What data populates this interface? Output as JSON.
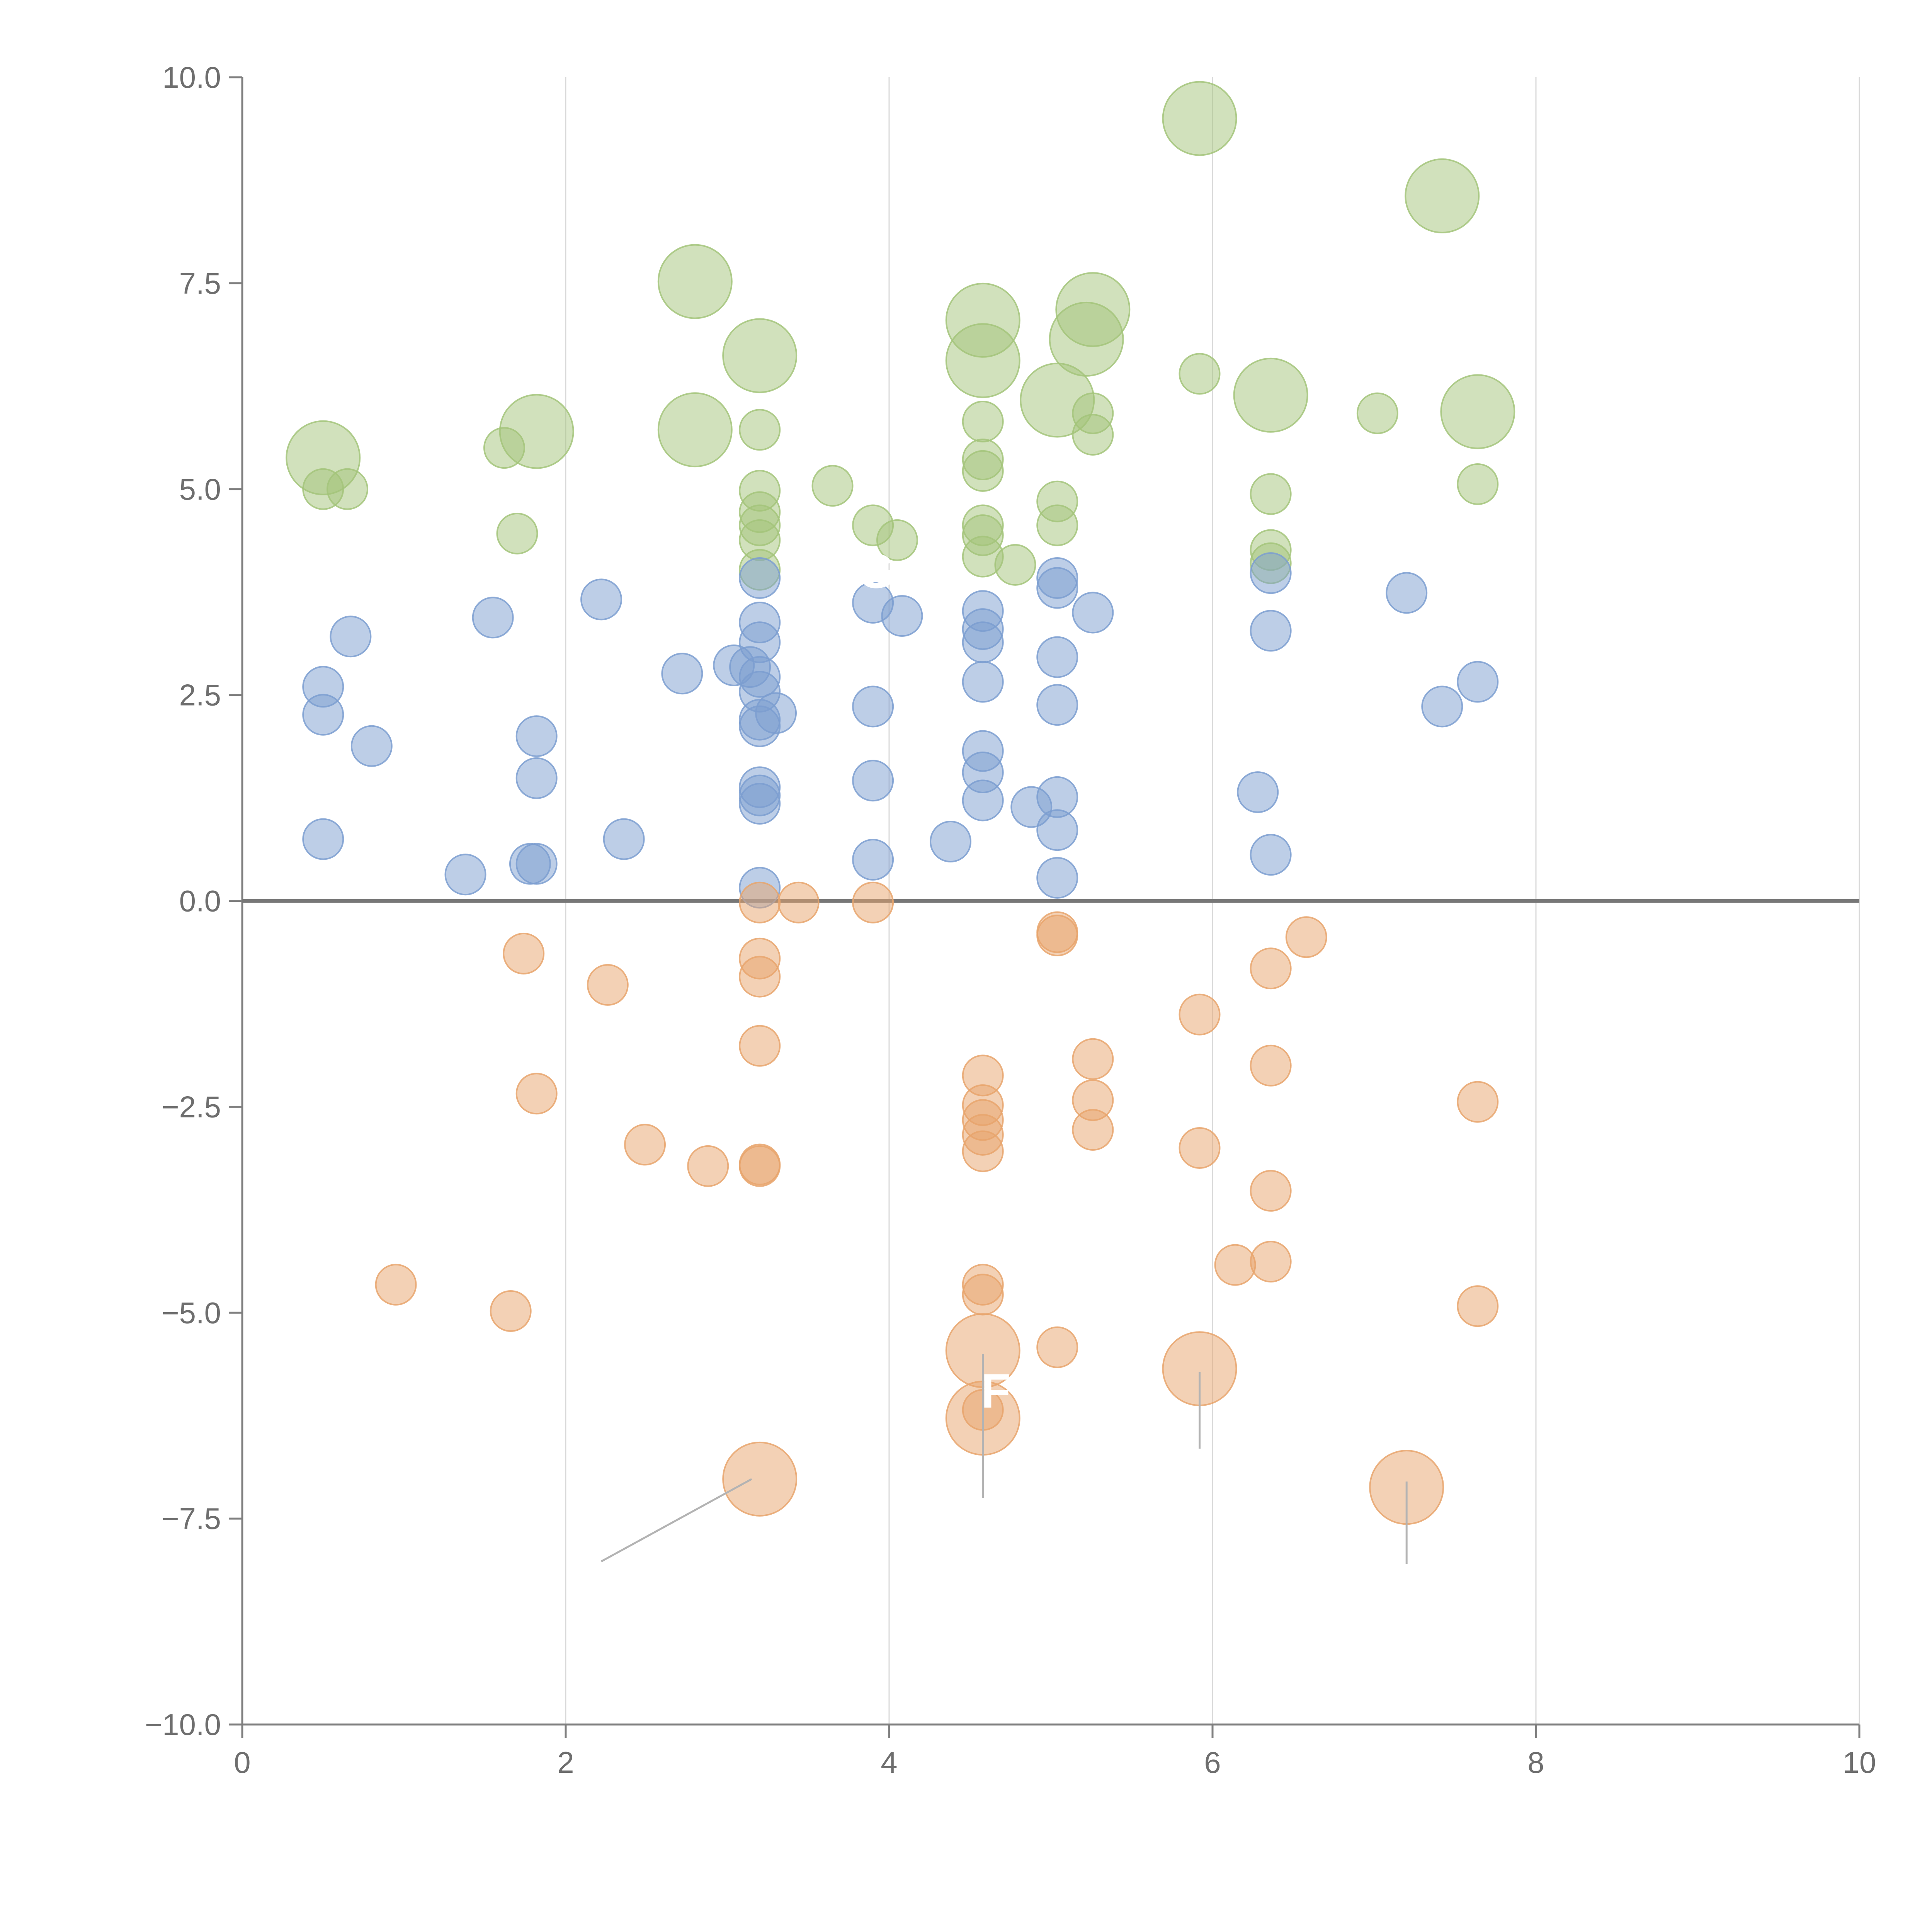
{
  "chart_data": {
    "type": "scatter",
    "title": "",
    "xlabel": "",
    "ylabel": "",
    "xlim": [
      0,
      10
    ],
    "ylim": [
      -10,
      10
    ],
    "grid": "vertical-only",
    "x_ticks": [
      0,
      2,
      4,
      6,
      8,
      10
    ],
    "x_tick_labels": [
      "0",
      "2",
      "4",
      "6",
      "8",
      "10"
    ],
    "y_ticks": [
      -10,
      -7.5,
      -5,
      -2.5,
      0,
      2.5,
      5,
      7.5,
      10
    ],
    "y_tick_labels": [
      "−10.0",
      "−7.5",
      "−5.0",
      "−2.5",
      "0.0",
      "2.5",
      "5.0",
      "7.5",
      "10.0"
    ],
    "zero_line": true,
    "series": [
      {
        "color": "#a3c47a",
        "points": [
          [
            0.5,
            5.38,
            3
          ],
          [
            0.5,
            5.0,
            1
          ],
          [
            0.65,
            5.0,
            1
          ],
          [
            1.62,
            5.5,
            1
          ],
          [
            1.82,
            5.7,
            3
          ],
          [
            1.7,
            4.46,
            1
          ],
          [
            2.8,
            7.52,
            3
          ],
          [
            2.8,
            5.72,
            3
          ],
          [
            3.2,
            6.62,
            3
          ],
          [
            3.2,
            5.72,
            1
          ],
          [
            3.2,
            4.98,
            1
          ],
          [
            3.2,
            4.72,
            1
          ],
          [
            3.2,
            4.56,
            1
          ],
          [
            3.2,
            4.38,
            1
          ],
          [
            3.2,
            4.02,
            1
          ],
          [
            3.65,
            5.04,
            1
          ],
          [
            3.9,
            4.56,
            1
          ],
          [
            4.05,
            4.38,
            1
          ],
          [
            4.58,
            7.05,
            3
          ],
          [
            4.58,
            6.56,
            3
          ],
          [
            4.58,
            5.82,
            1
          ],
          [
            4.58,
            5.36,
            1
          ],
          [
            4.58,
            5.22,
            1
          ],
          [
            4.58,
            4.56,
            1
          ],
          [
            4.58,
            4.44,
            1
          ],
          [
            4.58,
            4.18,
            1
          ],
          [
            4.78,
            4.08,
            1
          ],
          [
            5.04,
            6.08,
            3
          ],
          [
            5.04,
            4.85,
            1
          ],
          [
            5.04,
            4.56,
            1
          ],
          [
            5.26,
            7.18,
            3
          ],
          [
            5.22,
            6.82,
            3
          ],
          [
            5.26,
            5.92,
            1
          ],
          [
            5.26,
            5.66,
            1
          ],
          [
            5.92,
            9.5,
            3
          ],
          [
            5.92,
            6.4,
            1
          ],
          [
            6.36,
            6.14,
            3
          ],
          [
            6.36,
            4.94,
            1
          ],
          [
            6.36,
            4.26,
            1
          ],
          [
            6.36,
            4.1,
            1
          ],
          [
            7.02,
            5.92,
            1
          ],
          [
            7.42,
            8.56,
            3
          ],
          [
            7.64,
            5.94,
            3
          ],
          [
            7.64,
            5.06,
            1
          ]
        ]
      },
      {
        "color": "#7b9ed0",
        "points": [
          [
            0.5,
            2.6,
            1
          ],
          [
            0.5,
            2.26,
            1
          ],
          [
            0.5,
            0.75,
            1
          ],
          [
            0.67,
            3.21,
            1
          ],
          [
            0.8,
            1.88,
            1
          ],
          [
            1.38,
            0.32,
            1
          ],
          [
            1.55,
            3.44,
            1
          ],
          [
            1.82,
            2.0,
            1
          ],
          [
            1.82,
            1.49,
            1
          ],
          [
            1.78,
            0.45,
            1
          ],
          [
            1.82,
            0.45,
            1
          ],
          [
            2.22,
            3.66,
            1
          ],
          [
            2.36,
            0.75,
            1
          ],
          [
            2.72,
            2.76,
            1
          ],
          [
            3.04,
            2.86,
            1
          ],
          [
            3.14,
            2.84,
            1
          ],
          [
            3.2,
            3.92,
            1
          ],
          [
            3.2,
            3.38,
            1
          ],
          [
            3.2,
            3.14,
            1
          ],
          [
            3.2,
            2.72,
            1
          ],
          [
            3.2,
            2.54,
            1
          ],
          [
            3.2,
            2.2,
            1
          ],
          [
            3.2,
            2.12,
            1
          ],
          [
            3.3,
            2.28,
            1
          ],
          [
            3.2,
            1.38,
            1
          ],
          [
            3.2,
            1.28,
            1
          ],
          [
            3.2,
            1.18,
            1
          ],
          [
            3.2,
            0.16,
            1
          ],
          [
            3.9,
            3.62,
            1
          ],
          [
            4.08,
            3.46,
            1
          ],
          [
            3.9,
            2.36,
            1
          ],
          [
            3.9,
            1.46,
            1
          ],
          [
            3.9,
            0.5,
            1
          ],
          [
            4.38,
            0.72,
            1
          ],
          [
            4.58,
            3.52,
            1
          ],
          [
            4.58,
            3.3,
            1
          ],
          [
            4.58,
            3.14,
            1
          ],
          [
            4.58,
            2.66,
            1
          ],
          [
            4.58,
            1.82,
            1
          ],
          [
            4.58,
            1.56,
            1
          ],
          [
            4.58,
            1.22,
            1
          ],
          [
            4.88,
            1.14,
            1
          ],
          [
            5.04,
            3.92,
            1
          ],
          [
            5.04,
            3.8,
            1
          ],
          [
            5.04,
            2.96,
            1
          ],
          [
            5.04,
            2.38,
            1
          ],
          [
            5.04,
            1.26,
            1
          ],
          [
            5.04,
            0.86,
            1
          ],
          [
            5.04,
            0.28,
            1
          ],
          [
            5.26,
            3.5,
            1
          ],
          [
            6.28,
            1.32,
            1
          ],
          [
            6.36,
            3.98,
            1
          ],
          [
            6.36,
            3.28,
            1
          ],
          [
            6.36,
            0.56,
            1
          ],
          [
            7.2,
            3.74,
            1
          ],
          [
            7.42,
            2.36,
            1
          ],
          [
            7.64,
            2.66,
            1
          ]
        ]
      },
      {
        "color": "#e8a46c",
        "points": [
          [
            0.95,
            -4.66,
            1
          ],
          [
            1.66,
            -4.98,
            1
          ],
          [
            1.74,
            -0.64,
            1
          ],
          [
            1.82,
            -2.34,
            1
          ],
          [
            2.26,
            -1.02,
            1
          ],
          [
            2.49,
            -2.96,
            1
          ],
          [
            2.88,
            -3.22,
            1
          ],
          [
            3.2,
            -0.02,
            1
          ],
          [
            3.2,
            -0.7,
            1
          ],
          [
            3.2,
            -0.92,
            1
          ],
          [
            3.2,
            -1.76,
            1
          ],
          [
            3.2,
            -3.2,
            1
          ],
          [
            3.2,
            -3.22,
            1
          ],
          [
            3.2,
            -7.02,
            3
          ],
          [
            3.44,
            -0.02,
            1
          ],
          [
            3.9,
            -0.02,
            1
          ],
          [
            4.58,
            -2.12,
            1
          ],
          [
            4.58,
            -2.48,
            1
          ],
          [
            4.58,
            -2.66,
            1
          ],
          [
            4.58,
            -2.84,
            1
          ],
          [
            4.58,
            -3.04,
            1
          ],
          [
            4.58,
            -4.66,
            1
          ],
          [
            4.58,
            -4.78,
            1
          ],
          [
            4.58,
            -5.46,
            3
          ],
          [
            4.58,
            -6.18,
            1
          ],
          [
            4.58,
            -6.28,
            3
          ],
          [
            5.04,
            -0.38,
            1
          ],
          [
            5.04,
            -0.42,
            1
          ],
          [
            5.04,
            -5.42,
            1
          ],
          [
            5.26,
            -1.92,
            1
          ],
          [
            5.26,
            -2.42,
            1
          ],
          [
            5.26,
            -2.78,
            1
          ],
          [
            5.92,
            -1.38,
            1
          ],
          [
            5.92,
            -3.0,
            1
          ],
          [
            5.92,
            -5.68,
            3
          ],
          [
            6.14,
            -4.42,
            1
          ],
          [
            6.36,
            -0.82,
            1
          ],
          [
            6.36,
            -2.0,
            1
          ],
          [
            6.36,
            -3.52,
            1
          ],
          [
            6.36,
            -4.38,
            1
          ],
          [
            6.58,
            -0.44,
            1
          ],
          [
            7.2,
            -7.12,
            3
          ],
          [
            7.64,
            -2.44,
            1
          ],
          [
            7.64,
            -4.92,
            1
          ]
        ]
      }
    ],
    "annotations": [
      {
        "text": "G",
        "x": 3.92,
        "y": 3.8,
        "color": "#ffffff"
      },
      {
        "text": "F",
        "x": 4.66,
        "y": -6.15,
        "color": "#ffffff"
      }
    ],
    "leader_lines": [
      [
        3.15,
        -7.02,
        2.22,
        -8.02
      ],
      [
        4.58,
        -5.5,
        4.58,
        -7.25
      ],
      [
        5.92,
        -5.72,
        5.92,
        -6.65
      ],
      [
        7.2,
        -7.05,
        7.2,
        -8.05
      ]
    ]
  }
}
